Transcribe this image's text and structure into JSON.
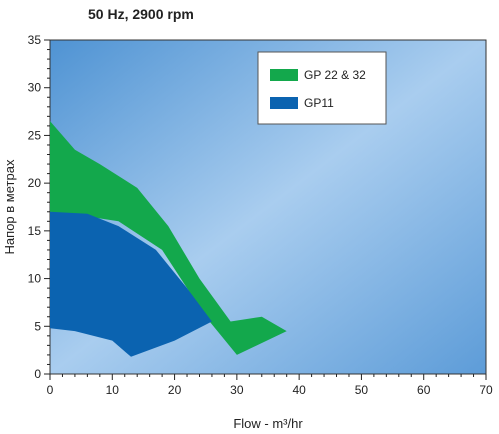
{
  "chart_data": {
    "type": "area",
    "title": "50 Hz, 2900 rpm",
    "xlabel": "Flow - m³/hr",
    "ylabel": "Напор в метрах",
    "xlim": [
      0,
      70
    ],
    "ylim": [
      0,
      35
    ],
    "xticks": [
      0,
      10,
      20,
      30,
      40,
      50,
      60,
      70
    ],
    "yticks": [
      0,
      5,
      10,
      15,
      20,
      25,
      30,
      35
    ],
    "grid": false,
    "legend_position": "top-right",
    "series": [
      {
        "name": "GP 22 & 32",
        "color": "#13a84c",
        "polygon": [
          [
            0,
            26.5
          ],
          [
            4,
            23.5
          ],
          [
            8,
            22
          ],
          [
            14,
            19.5
          ],
          [
            19,
            15.5
          ],
          [
            24,
            10
          ],
          [
            29,
            5.5
          ],
          [
            34,
            6
          ],
          [
            38,
            4.5
          ],
          [
            30,
            2
          ],
          [
            25,
            6
          ],
          [
            18,
            13
          ],
          [
            11,
            16
          ],
          [
            6,
            16.5
          ],
          [
            0,
            17
          ]
        ]
      },
      {
        "name": "GP11",
        "color": "#0b63b0",
        "polygon": [
          [
            0,
            17
          ],
          [
            6,
            16.8
          ],
          [
            11,
            15.5
          ],
          [
            17,
            13
          ],
          [
            22,
            9
          ],
          [
            26,
            5.5
          ],
          [
            20,
            3.5
          ],
          [
            13,
            1.8
          ],
          [
            10,
            3.5
          ],
          [
            4,
            4.5
          ],
          [
            0,
            4.8
          ]
        ]
      }
    ]
  }
}
